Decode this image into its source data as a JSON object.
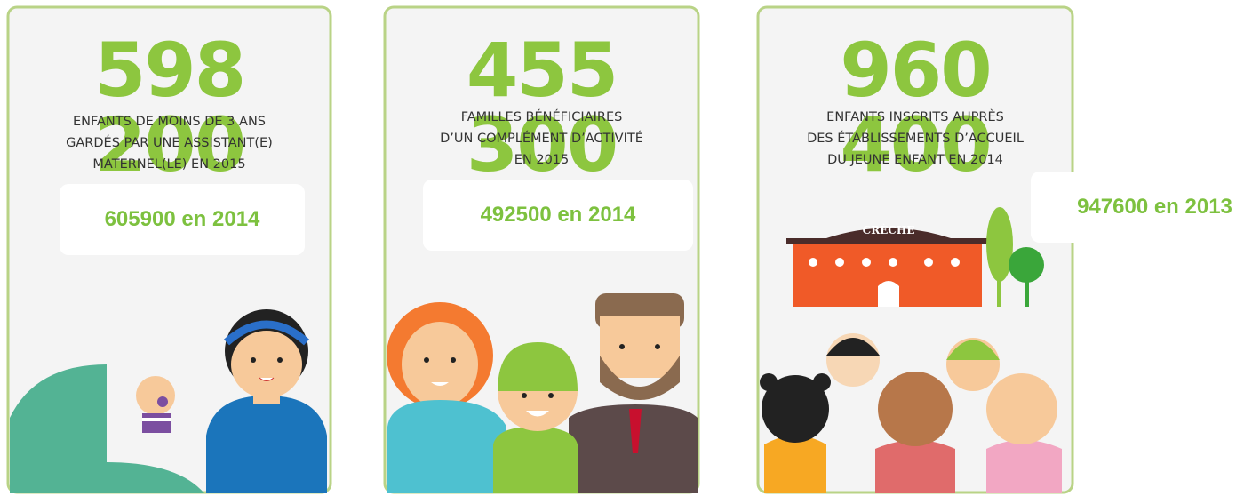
{
  "cards": [
    {
      "number": "598 200",
      "description": [
        "ENFANTS DE MOINS DE 3 ANS",
        "GARDÉS PAR UNE ASSISTANT(E)",
        "MATERNEL(LE) EN 2015"
      ],
      "comparison": "605900 en 2014"
    },
    {
      "number": "455 300",
      "description": [
        "FAMILLES BÉNÉFICIAIRES",
        "D’UN COMPLÉMENT D’ACTIVITÉ",
        "EN 2015"
      ],
      "comparison": "492500 en 2014"
    },
    {
      "number": "960 400",
      "description": [
        "ENFANTS INSCRITS AUPRÈS",
        "DES ÉTABLISSEMENTS D’ACCUEIL",
        "DU JEUNE ENFANT EN 2014"
      ],
      "comparison": "947600 en 2013"
    }
  ],
  "sign": "CRÈCHE"
}
